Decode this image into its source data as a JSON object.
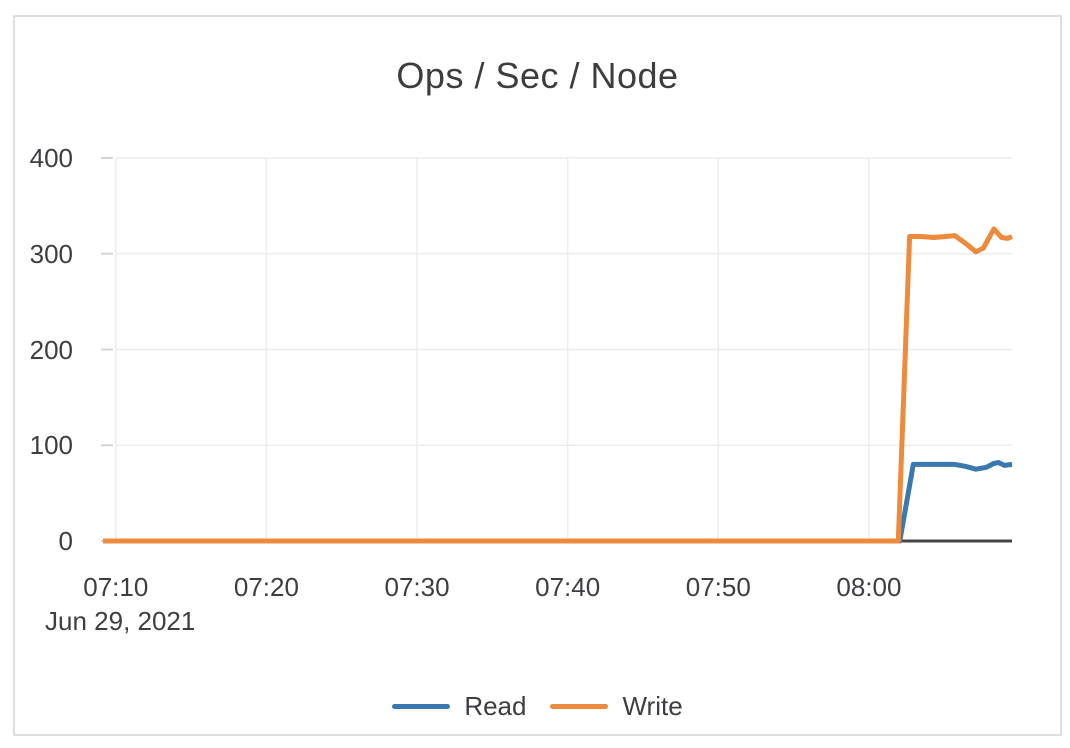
{
  "chart_data": {
    "type": "line",
    "title": "Ops / Sec / Node",
    "xlabel": "",
    "ylabel": "",
    "x_axis": {
      "unit": "time of day (minutes after 07:00)",
      "date_label": "Jun 29, 2021",
      "ticks": [
        {
          "minutes": 10,
          "label": "07:10"
        },
        {
          "minutes": 20,
          "label": "07:20"
        },
        {
          "minutes": 30,
          "label": "07:30"
        },
        {
          "minutes": 40,
          "label": "07:40"
        },
        {
          "minutes": 50,
          "label": "07:50"
        },
        {
          "minutes": 60,
          "label": "08:00"
        }
      ],
      "xlim_minutes": [
        9.15,
        69.5
      ]
    },
    "y_axis": {
      "ticks": [
        0,
        100,
        200,
        300,
        400
      ],
      "ylim": [
        0,
        400
      ]
    },
    "grid": true,
    "legend_position": "bottom",
    "series": [
      {
        "name": "Read",
        "color": "#3c78b0",
        "x": [
          9.15,
          15,
          20,
          25,
          30,
          35,
          40,
          45,
          50,
          55,
          60,
          62.05,
          62.95,
          64,
          65,
          65.7,
          66.4,
          67.1,
          67.8,
          68.3,
          68.6,
          69.0,
          69.5
        ],
        "y": [
          0,
          0,
          0,
          0,
          0,
          0,
          0,
          0,
          0,
          0,
          0,
          0,
          80,
          80,
          80,
          80,
          78,
          75,
          77,
          81,
          82,
          79,
          80
        ]
      },
      {
        "name": "Write",
        "color": "#ee8a3c",
        "x": [
          9.15,
          15,
          20,
          25,
          30,
          35,
          40,
          45,
          50,
          55,
          60,
          61.95,
          62.7,
          63.5,
          64.3,
          65.1,
          65.7,
          66.4,
          67.1,
          67.6,
          68.3,
          68.8,
          69.2,
          69.5
        ],
        "y": [
          0,
          0,
          0,
          0,
          0,
          0,
          0,
          0,
          0,
          0,
          0,
          0,
          318,
          318,
          317,
          318,
          319,
          311,
          302,
          306,
          326,
          317,
          316,
          318
        ]
      }
    ]
  },
  "styles": {
    "grid_color": "#ececec",
    "tick_mark_color": "#d4d4d4",
    "axis_line_color": "#454545",
    "text_color": "#3e3e42",
    "border_color": "#dedede",
    "background": "#ffffff"
  }
}
